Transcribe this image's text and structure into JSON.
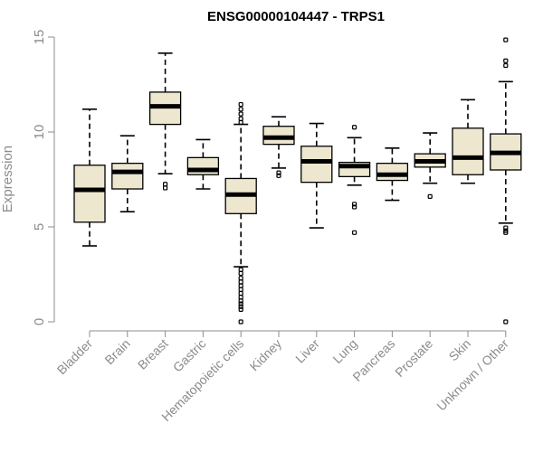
{
  "chart_data": {
    "type": "boxplot",
    "title": "ENSG00000104447 - TRPS1",
    "xlabel": "",
    "ylabel": "Expression",
    "ylim": [
      0,
      15
    ],
    "yticks": [
      0,
      5,
      10,
      15
    ],
    "categories": [
      "Bladder",
      "Brain",
      "Breast",
      "Gastric",
      "Hematopoietic cells",
      "Kidney",
      "Liver",
      "Lung",
      "Pancreas",
      "Prostate",
      "Skin",
      "Unknown / Other"
    ],
    "boxes": [
      {
        "category": "Bladder",
        "whisker_low": 4.0,
        "q1": 5.25,
        "median": 6.95,
        "q3": 8.25,
        "whisker_high": 11.2,
        "outliers": []
      },
      {
        "category": "Brain",
        "whisker_low": 5.8,
        "q1": 7.0,
        "median": 7.9,
        "q3": 8.35,
        "whisker_high": 9.8,
        "outliers": []
      },
      {
        "category": "Breast",
        "whisker_low": 7.8,
        "q1": 10.4,
        "median": 11.35,
        "q3": 12.1,
        "whisker_high": 14.15,
        "outliers": [
          7.25,
          7.05
        ]
      },
      {
        "category": "Gastric",
        "whisker_low": 7.0,
        "q1": 7.75,
        "median": 8.0,
        "q3": 8.65,
        "whisker_high": 9.6,
        "outliers": []
      },
      {
        "category": "Hematopoietic cells",
        "whisker_low": 2.9,
        "q1": 5.7,
        "median": 6.7,
        "q3": 7.55,
        "whisker_high": 10.4,
        "outliers": [
          11.45,
          11.2,
          10.95,
          10.7,
          10.5,
          2.75,
          2.55,
          2.3,
          2.1,
          1.9,
          1.7,
          1.5,
          1.3,
          1.1,
          0.95,
          0.8,
          0.65,
          0.0
        ]
      },
      {
        "category": "Kidney",
        "whisker_low": 8.1,
        "q1": 9.35,
        "median": 9.7,
        "q3": 10.3,
        "whisker_high": 10.8,
        "outliers": [
          7.85,
          7.7
        ]
      },
      {
        "category": "Liver",
        "whisker_low": 4.95,
        "q1": 7.35,
        "median": 8.45,
        "q3": 9.25,
        "whisker_high": 10.45,
        "outliers": []
      },
      {
        "category": "Lung",
        "whisker_low": 7.2,
        "q1": 7.65,
        "median": 8.2,
        "q3": 8.4,
        "whisker_high": 9.7,
        "outliers": [
          10.25,
          6.2,
          6.05,
          4.7
        ]
      },
      {
        "category": "Pancreas",
        "whisker_low": 6.4,
        "q1": 7.45,
        "median": 7.75,
        "q3": 8.35,
        "whisker_high": 9.15,
        "outliers": []
      },
      {
        "category": "Prostate",
        "whisker_low": 7.3,
        "q1": 8.15,
        "median": 8.45,
        "q3": 8.85,
        "whisker_high": 9.95,
        "outliers": [
          6.6
        ]
      },
      {
        "category": "Skin",
        "whisker_low": 7.3,
        "q1": 7.75,
        "median": 8.65,
        "q3": 10.2,
        "whisker_high": 11.7,
        "outliers": []
      },
      {
        "category": "Unknown / Other",
        "whisker_low": 5.2,
        "q1": 8.0,
        "median": 8.9,
        "q3": 9.9,
        "whisker_high": 12.65,
        "outliers": [
          14.85,
          13.75,
          13.5,
          4.95,
          4.8,
          4.7,
          0.0
        ]
      }
    ],
    "colors": {
      "box_fill": "#ede7d0",
      "axis": "#8c8c8c",
      "line": "#000000"
    }
  }
}
